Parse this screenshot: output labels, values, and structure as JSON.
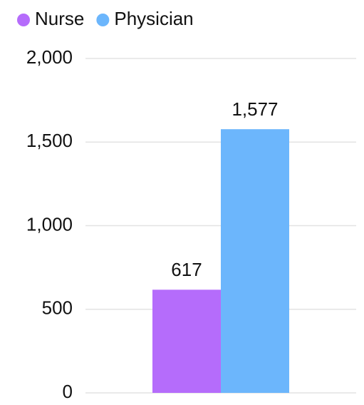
{
  "chart_data": {
    "type": "bar",
    "categories": [
      null
    ],
    "series": [
      {
        "name": "Nurse",
        "color": "#b56cfb",
        "values": [
          617
        ],
        "value_labels": [
          "617"
        ]
      },
      {
        "name": "Physician",
        "color": "#6cb6fc",
        "values": [
          1577
        ],
        "value_labels": [
          "1,577"
        ]
      }
    ],
    "ylim": [
      0,
      2000
    ],
    "yticks": [
      0,
      500,
      {
        "value": 1000,
        "label": "1,000"
      },
      {
        "value": 1500,
        "label": "1,500"
      },
      {
        "value": 2000,
        "label": "2,000"
      }
    ],
    "grid": true,
    "legend": "top-left"
  }
}
